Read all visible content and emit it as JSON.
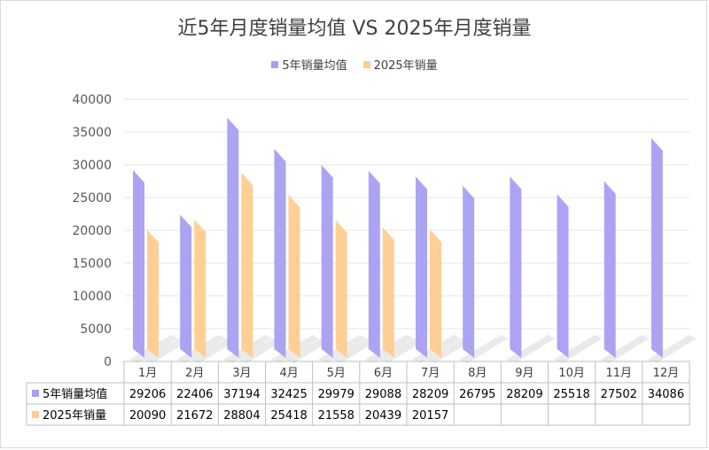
{
  "chart_data": {
    "type": "bar",
    "title": "近5年月度销量均值 VS 2025年月度销量",
    "categories": [
      "1月",
      "2月",
      "3月",
      "4月",
      "5月",
      "6月",
      "7月",
      "8月",
      "9月",
      "10月",
      "11月",
      "12月"
    ],
    "series": [
      {
        "name": "5年销量均值",
        "color": "#a89ff2",
        "values": [
          29206,
          22406,
          37194,
          32425,
          29979,
          29088,
          28209,
          26795,
          28209,
          25518,
          27502,
          34086
        ]
      },
      {
        "name": "2025年销量",
        "color": "#ffcc8f",
        "values": [
          20090,
          21672,
          28804,
          25418,
          21558,
          20439,
          20157,
          null,
          null,
          null,
          null,
          null
        ]
      }
    ],
    "ylim": [
      0,
      40000
    ],
    "yticks": [
      0,
      5000,
      10000,
      15000,
      20000,
      25000,
      30000,
      35000,
      40000
    ],
    "grid": true,
    "legend": "top",
    "data_table": true,
    "xlabel": "",
    "ylabel": ""
  }
}
